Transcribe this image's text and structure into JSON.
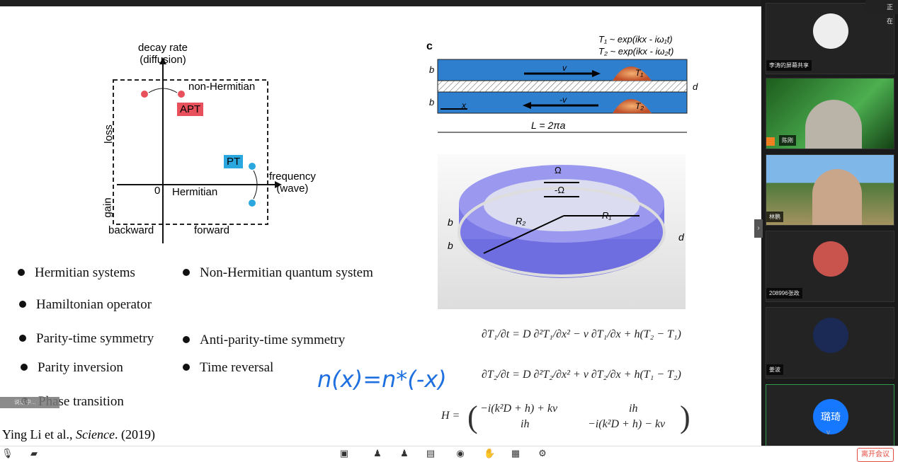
{
  "slide": {
    "diagram_left": {
      "y_label_1": "decay rate",
      "y_label_2": "(diffusion)",
      "x_label_1": "frequency",
      "x_label_2": "(wave)",
      "loss": "loss",
      "gain": "gain",
      "zero": "0",
      "hermitian": "Hermitian",
      "non_hermitian": "non-Hermitian",
      "apt": "APT",
      "pt": "PT",
      "backward": "backward",
      "forward": "forward",
      "apt_color": "#e8505b",
      "pt_color": "#2aa7df"
    },
    "panel_c": {
      "label": "c",
      "t1_eq": "T₁ ~ exp(ikx - iω₁t)",
      "t2_eq": "T₂ ~ exp(ikx - iω₂t)",
      "b": "b",
      "d": "d",
      "v": "v",
      "neg_v": "-v",
      "x": "x",
      "T1": "T₁",
      "T2": "T₂",
      "L": "L = 2πa"
    },
    "ring": {
      "omega": "Ω",
      "neg_omega": "-Ω",
      "R1": "R₁",
      "R2": "R₂",
      "b": "b",
      "d": "d"
    },
    "bullets": [
      "Hermitian systems",
      "Non-Hermitian quantum system",
      "Hamiltonian operator",
      "Parity-time symmetry",
      "Anti-parity-time symmetry",
      "Parity inversion",
      "Time reversal",
      "Phase transition"
    ],
    "handwriting": "n(x)=n*(-x)",
    "equations": [
      "∂T₁/∂t = D ∂²T₁/∂x² − v ∂T₁/∂x + h(T₂ − T₁)",
      "∂T₂/∂t = D ∂²T₂/∂x² + v ∂T₂/∂x + h(T₁ − T₂)"
    ],
    "hamiltonian": {
      "lhs": "H =",
      "a11": "−i(k²D + h) + kv",
      "a12": "ih",
      "a21": "ih",
      "a22": "−i(k²D + h) − kv"
    },
    "citation_author": "Ying Li  et al., ",
    "citation_journal": "Science",
    "citation_year": ". (2019)",
    "speaking_overlay": "说话中..."
  },
  "participants": [
    {
      "name": "李涛的屏幕共享",
      "avatar_color": "#eee"
    },
    {
      "name": "陈刚",
      "avatar_color": "#2e7d32"
    },
    {
      "name": "林鹏",
      "avatar_color": "#6a8e4e"
    },
    {
      "name": "208996张政",
      "avatar_color": "#c9544e"
    },
    {
      "name": "姜波",
      "avatar_color": "#1a2a55"
    },
    {
      "name": "璐琦",
      "avatar_color": "#1677ff",
      "initials": "璐琦"
    }
  ],
  "status": {
    "recording": "正在"
  },
  "toolbar": {
    "leave": "离开会议",
    "leave_color": "#e54d42"
  }
}
